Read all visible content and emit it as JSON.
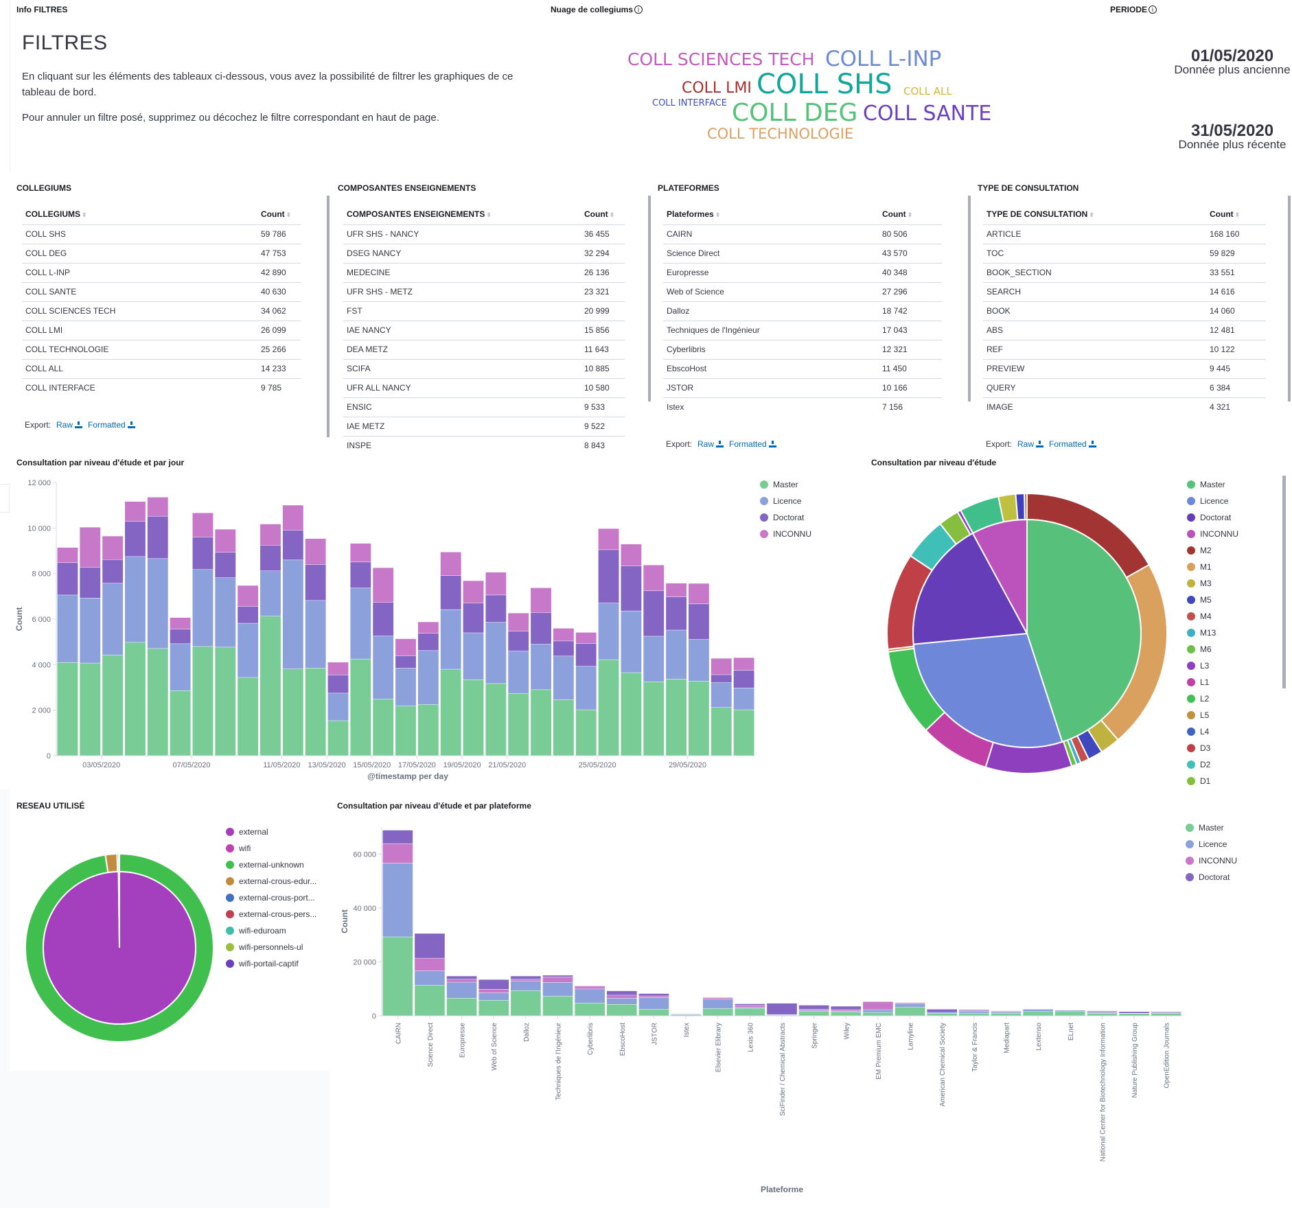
{
  "info_panel": {
    "title": "Info FILTRES",
    "heading": "FILTRES",
    "paragraph1": "En cliquant sur les éléments des tableaux ci-dessous, vous avez la possibilité de filtrer les graphiques de ce tableau de bord.",
    "paragraph2": "Pour annuler un filtre posé, supprimez ou décochez le filtre correspondant en haut de page."
  },
  "cloud_panel": {
    "title": "Nuage de collegiums",
    "info_icon": "info-icon",
    "words": [
      {
        "text": "COLL SCIENCES TECH",
        "color": "#c45bbf"
      },
      {
        "text": "COLL L-INP",
        "color": "#6b8bd8"
      },
      {
        "text": "COLL LMI",
        "color": "#a3302f"
      },
      {
        "text": "COLL SHS",
        "color": "#12a69b"
      },
      {
        "text": "COLL ALL",
        "color": "#d6b43a"
      },
      {
        "text": "COLL INTERFACE",
        "color": "#3f4fc0"
      },
      {
        "text": "COLL DEG",
        "color": "#55c27a"
      },
      {
        "text": "COLL SANTE",
        "color": "#6a3fc0"
      },
      {
        "text": "COLL TECHNOLOGIE",
        "color": "#dca060"
      }
    ]
  },
  "period_panel": {
    "title": "PERIODE",
    "oldest_date": "01/05/2020",
    "oldest_label": "Donnée plus ancienne",
    "newest_date": "31/05/2020",
    "newest_label": "Donnée plus récente"
  },
  "export": {
    "label": "Export:",
    "raw": "Raw",
    "formatted": "Formatted"
  },
  "tables": {
    "collegiums": {
      "title": "COLLEGIUMS",
      "col1": "COLLEGIUMS",
      "col2": "Count",
      "rows": [
        [
          "COLL SHS",
          "59 786"
        ],
        [
          "COLL DEG",
          "47 753"
        ],
        [
          "COLL L-INP",
          "42 890"
        ],
        [
          "COLL SANTE",
          "40 630"
        ],
        [
          "COLL SCIENCES TECH",
          "34 062"
        ],
        [
          "COLL LMI",
          "26 099"
        ],
        [
          "COLL TECHNOLOGIE",
          "25 266"
        ],
        [
          "COLL ALL",
          "14 233"
        ],
        [
          "COLL INTERFACE",
          "9 785"
        ]
      ]
    },
    "composantes": {
      "title": "COMPOSANTES ENSEIGNEMENTS",
      "col1": "COMPOSANTES ENSEIGNEMENTS",
      "col2": "Count",
      "rows": [
        [
          "UFR SHS - NANCY",
          "36 455"
        ],
        [
          "DSEG NANCY",
          "32 294"
        ],
        [
          "MEDECINE",
          "26 136"
        ],
        [
          "UFR SHS - METZ",
          "23 321"
        ],
        [
          "FST",
          "20 999"
        ],
        [
          "IAE NANCY",
          "15 856"
        ],
        [
          "DEA METZ",
          "11 643"
        ],
        [
          "SCIFA",
          "10 885"
        ],
        [
          "UFR ALL NANCY",
          "10 580"
        ],
        [
          "ENSIC",
          "9 533"
        ],
        [
          "IAE METZ",
          "9 522"
        ],
        [
          "INSPE",
          "8 843"
        ]
      ]
    },
    "plateformes": {
      "title": "PLATEFORMES",
      "col1": "Plateformes",
      "col2": "Count",
      "rows": [
        [
          "CAIRN",
          "80 506"
        ],
        [
          "Science Direct",
          "43 570"
        ],
        [
          "Europresse",
          "40 348"
        ],
        [
          "Web of Science",
          "27 296"
        ],
        [
          "Dalloz",
          "18 742"
        ],
        [
          "Techniques de l'Ingénieur",
          "17 043"
        ],
        [
          "Cyberlibris",
          "12 321"
        ],
        [
          "EbscoHost",
          "11 450"
        ],
        [
          "JSTOR",
          "10 166"
        ],
        [
          "Istex",
          "7 156"
        ]
      ]
    },
    "type_consultation": {
      "title": "TYPE DE CONSULTATION",
      "col1": "TYPE DE CONSULTATION",
      "col2": "Count",
      "rows": [
        [
          "ARTICLE",
          "168 160"
        ],
        [
          "TOC",
          "59 829"
        ],
        [
          "BOOK_SECTION",
          "33 551"
        ],
        [
          "SEARCH",
          "14 616"
        ],
        [
          "BOOK",
          "14 060"
        ],
        [
          "ABS",
          "12 481"
        ],
        [
          "REF",
          "10 122"
        ],
        [
          "PREVIEW",
          "9 445"
        ],
        [
          "QUERY",
          "6 384"
        ],
        [
          "IMAGE",
          "4 321"
        ]
      ]
    }
  },
  "colors": {
    "Master": "#79cc95",
    "Licence": "#8ca0dc",
    "Doctorat": "#8565c4",
    "INCONNU": "#c878c8"
  },
  "chart_data": [
    {
      "id": "daily",
      "type": "bar",
      "stacked": true,
      "title": "Consultation par niveau d'étude et par jour",
      "xlabel": "@timestamp per day",
      "ylabel": "Count",
      "ylim": [
        0,
        12000
      ],
      "yticks": [
        "0",
        "2 000",
        "4 000",
        "6 000",
        "8 000",
        "10 000",
        "12 000"
      ],
      "ytick_values": [
        0,
        2000,
        4000,
        6000,
        8000,
        10000,
        12000
      ],
      "xtick_labels": [
        {
          "index": 2,
          "label": "03/05/2020"
        },
        {
          "index": 6,
          "label": "07/05/2020"
        },
        {
          "index": 10,
          "label": "11/05/2020"
        },
        {
          "index": 12,
          "label": "13/05/2020"
        },
        {
          "index": 14,
          "label": "15/05/2020"
        },
        {
          "index": 16,
          "label": "17/05/2020"
        },
        {
          "index": 18,
          "label": "19/05/2020"
        },
        {
          "index": 20,
          "label": "21/05/2020"
        },
        {
          "index": 24,
          "label": "25/05/2020"
        },
        {
          "index": 28,
          "label": "29/05/2020"
        }
      ],
      "categories": [
        "01/05",
        "02/05",
        "03/05",
        "04/05",
        "05/05",
        "06/05",
        "07/05",
        "08/05",
        "09/05",
        "10/05",
        "11/05",
        "12/05",
        "13/05",
        "14/05",
        "15/05",
        "16/05",
        "17/05",
        "18/05",
        "19/05",
        "20/05",
        "21/05",
        "22/05",
        "23/05",
        "24/05",
        "25/05",
        "26/05",
        "27/05",
        "28/05",
        "29/05",
        "30/05",
        "31/05"
      ],
      "legend_position": "top-right",
      "series": [
        {
          "name": "Master",
          "values": [
            4090,
            4060,
            4420,
            4970,
            4700,
            2850,
            4790,
            4760,
            3430,
            6120,
            3800,
            3840,
            1530,
            4240,
            2480,
            2180,
            2240,
            3790,
            3330,
            3160,
            2730,
            2890,
            2450,
            2010,
            4210,
            3640,
            3240,
            3360,
            3270,
            2110,
            2010
          ]
        },
        {
          "name": "Licence",
          "values": [
            2960,
            2860,
            3150,
            3770,
            3950,
            2060,
            3380,
            3050,
            2380,
            1990,
            4790,
            2970,
            1210,
            3120,
            2770,
            1660,
            2370,
            2620,
            2060,
            2690,
            1860,
            2000,
            1920,
            1910,
            2490,
            2710,
            2000,
            2150,
            1830,
            1090,
            960
          ]
        },
        {
          "name": "Doctorat",
          "values": [
            1420,
            1350,
            1040,
            1550,
            1860,
            640,
            1430,
            1120,
            740,
            1130,
            1310,
            1580,
            800,
            1140,
            1480,
            540,
            760,
            1490,
            1310,
            1200,
            870,
            1390,
            660,
            1000,
            2340,
            1980,
            2000,
            1460,
            1560,
            350,
            770
          ]
        },
        {
          "name": "INCONNU",
          "values": [
            670,
            1760,
            1030,
            870,
            840,
            510,
            1060,
            1010,
            920,
            930,
            1100,
            1140,
            560,
            820,
            1520,
            750,
            500,
            1040,
            980,
            1000,
            800,
            1090,
            560,
            490,
            930,
            960,
            1130,
            600,
            900,
            720,
            560
          ]
        }
      ]
    },
    {
      "id": "niveau",
      "type": "pie",
      "title": "Consultation par niveau d'étude",
      "legend_position": "right",
      "inner": [
        {
          "label": "Master",
          "value": 45.0,
          "color": "#57c17b"
        },
        {
          "label": "Licence",
          "value": 28.5,
          "color": "#6f87d8"
        },
        {
          "label": "Doctorat",
          "value": 18.6,
          "color": "#663db8"
        },
        {
          "label": "INCONNU",
          "value": 7.9,
          "color": "#bc52bc"
        }
      ],
      "outer": [
        {
          "label": "M2",
          "value": 16.9,
          "color": "#a23434"
        },
        {
          "label": "M1",
          "value": 22.0,
          "color": "#daa05d"
        },
        {
          "label": "M3",
          "value": 2.3,
          "color": "#c0b240"
        },
        {
          "label": "M5",
          "value": 1.7,
          "color": "#3f48bd"
        },
        {
          "label": "M4",
          "value": 1.0,
          "color": "#c44f4f"
        },
        {
          "label": "M13",
          "value": 0.5,
          "color": "#3fb0c4"
        },
        {
          "label": "M6",
          "value": 0.6,
          "color": "#6cc04a"
        },
        {
          "label": "L3",
          "value": 10.0,
          "color": "#8e3fbd"
        },
        {
          "label": "L1",
          "value": 8.1,
          "color": "#c040a6"
        },
        {
          "label": "L2",
          "value": 10.1,
          "color": "#40c057"
        },
        {
          "label": "L5",
          "value": 0.3,
          "color": "#c09140"
        },
        {
          "label": "D3",
          "value": 11.2,
          "color": "#c04048"
        },
        {
          "label": "D2",
          "value": 5.0,
          "color": "#40bfb9"
        },
        {
          "label": "D1",
          "value": 2.4,
          "color": "#86bf40"
        },
        {
          "label": "L4",
          "value": 0.4,
          "color": "#8e3fbd"
        },
        {
          "label": "",
          "value": 4.6,
          "color": "#40bf8a"
        },
        {
          "label": "",
          "value": 2.0,
          "color": "#bfbf40"
        },
        {
          "label": "",
          "value": 1.0,
          "color": "#4040bf"
        },
        {
          "label": "",
          "value": 0.3,
          "color": "#bf6a40"
        }
      ],
      "legend": [
        {
          "label": "Master",
          "color": "#57c17b"
        },
        {
          "label": "Licence",
          "color": "#6f87d8"
        },
        {
          "label": "Doctorat",
          "color": "#663db8"
        },
        {
          "label": "INCONNU",
          "color": "#bc52bc"
        },
        {
          "label": "M2",
          "color": "#a23434"
        },
        {
          "label": "M1",
          "color": "#daa05d"
        },
        {
          "label": "M3",
          "color": "#c0b240"
        },
        {
          "label": "M5",
          "color": "#3f48bd"
        },
        {
          "label": "M4",
          "color": "#c44f4f"
        },
        {
          "label": "M13",
          "color": "#3fb0c4"
        },
        {
          "label": "M6",
          "color": "#6cc04a"
        },
        {
          "label": "L3",
          "color": "#8e3fbd"
        },
        {
          "label": "L1",
          "color": "#c040a6"
        },
        {
          "label": "L2",
          "color": "#40c057"
        },
        {
          "label": "L5",
          "color": "#c09140"
        },
        {
          "label": "L4",
          "color": "#4062bf"
        },
        {
          "label": "D3",
          "color": "#c04048"
        },
        {
          "label": "D2",
          "color": "#40bfb9"
        },
        {
          "label": "D1",
          "color": "#86bf40"
        }
      ]
    },
    {
      "id": "reseau",
      "type": "pie",
      "title": "RESEAU UTILISÉ",
      "legend_position": "right",
      "inner": [
        {
          "label": "external",
          "value": 99.8,
          "color": "#a43fbd"
        },
        {
          "label": "wifi",
          "value": 0.2,
          "color": "#c040b0"
        }
      ],
      "outer": [
        {
          "label": "external-unknown",
          "value": 97.6,
          "color": "#40bf4f"
        },
        {
          "label": "external-crous-edur...",
          "value": 2.0,
          "color": "#c08c40"
        },
        {
          "label": "external-crous-port...",
          "value": 0.3,
          "color": "#4072bf"
        },
        {
          "label": "external-crous-pers...",
          "value": 0.05,
          "color": "#bf4052"
        },
        {
          "label": "wifi-eduroam",
          "value": 0.03,
          "color": "#40bfa8"
        },
        {
          "label": "wifi-personnels-ul",
          "value": 0.01,
          "color": "#9abf40"
        },
        {
          "label": "wifi-portail-captif",
          "value": 0.01,
          "color": "#6a40bf"
        }
      ],
      "legend": [
        {
          "label": "external",
          "color": "#a43fbd"
        },
        {
          "label": "wifi",
          "color": "#c040b0"
        },
        {
          "label": "external-unknown",
          "color": "#40bf4f"
        },
        {
          "label": "external-crous-edur...",
          "color": "#c08c40"
        },
        {
          "label": "external-crous-port...",
          "color": "#4072bf"
        },
        {
          "label": "external-crous-pers...",
          "color": "#bf4052"
        },
        {
          "label": "wifi-eduroam",
          "color": "#40bfa8"
        },
        {
          "label": "wifi-personnels-ul",
          "color": "#9abf40"
        },
        {
          "label": "wifi-portail-captif",
          "color": "#6a40bf"
        }
      ]
    },
    {
      "id": "plateforme",
      "type": "bar",
      "stacked": true,
      "title": "Consultation par niveau d'étude et par plateforme",
      "xlabel": "Plateforme",
      "ylabel": "Count",
      "ylim": [
        0,
        70000
      ],
      "yticks": [
        "0",
        "20 000",
        "40 000",
        "60 000"
      ],
      "ytick_values": [
        0,
        20000,
        40000,
        60000
      ],
      "legend_position": "top-right",
      "categories": [
        "CAIRN",
        "Science Direct",
        "Europresse",
        "Web of Science",
        "Dalloz",
        "Techniques de l'Ingénieur",
        "Cyberlibris",
        "EbscoHost",
        "JSTOR",
        "Istex",
        "Elsevier Elibrary",
        "Lexis 360",
        "SciFinder / Chemical Abstracts",
        "Springer",
        "Wiley",
        "EM Premium EMC",
        "Lamyline",
        "American Chemical Society",
        "Taylor & Francis",
        "Mediapart",
        "Lextenso",
        "ELnet",
        "National Center for Biotechnology Information",
        "Nature Publishing Group",
        "OpenEdition Journals"
      ],
      "series": [
        {
          "name": "Master",
          "values": [
            29200,
            11300,
            6500,
            5700,
            9300,
            7200,
            4700,
            4200,
            2400,
            300,
            2600,
            2700,
            200,
            1500,
            1300,
            1200,
            3200,
            800,
            900,
            900,
            1500,
            1500,
            800,
            800,
            800
          ]
        },
        {
          "name": "Licence",
          "values": [
            27400,
            5300,
            5900,
            2800,
            3600,
            5100,
            5200,
            2300,
            4300,
            300,
            3500,
            400,
            200,
            400,
            400,
            1000,
            1200,
            400,
            600,
            400,
            900,
            500,
            400,
            100,
            400
          ]
        },
        {
          "name": "INCONNU",
          "values": [
            7200,
            4700,
            1100,
            1300,
            600,
            2100,
            1000,
            1100,
            600,
            100,
            500,
            700,
            0,
            500,
            500,
            3000,
            400,
            0,
            300,
            300,
            100,
            100,
            300,
            0,
            300
          ]
        },
        {
          "name": "Doctorat",
          "values": [
            5000,
            9200,
            1200,
            3600,
            1200,
            600,
            200,
            1600,
            900,
            0,
            200,
            600,
            4200,
            1500,
            1300,
            0,
            0,
            1200,
            400,
            200,
            0,
            0,
            300,
            600,
            0
          ]
        }
      ]
    }
  ],
  "legends": {
    "daily": [
      "Master",
      "Licence",
      "Doctorat",
      "INCONNU"
    ],
    "plateforme": [
      "Master",
      "Licence",
      "INCONNU",
      "Doctorat"
    ]
  }
}
